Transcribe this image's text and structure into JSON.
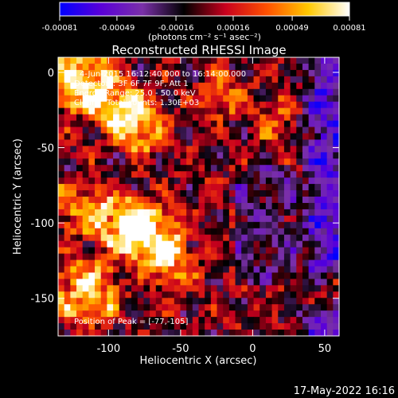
{
  "chart_data": {
    "type": "heatmap",
    "title": "Reconstructed RHESSI Image",
    "xlabel": "Heliocentric X (arcsec)",
    "ylabel": "Heliocentric Y (arcsec)",
    "xlim": [
      -135,
      60
    ],
    "ylim": [
      -175,
      10
    ],
    "x_ticks": [
      -100,
      -50,
      0,
      50
    ],
    "y_ticks": [
      0,
      -50,
      -100,
      -150
    ],
    "colorbar": {
      "range": [
        -0.00081,
        0.00081
      ],
      "ticks": [
        -0.00081,
        -0.00049,
        -0.00016,
        0.00016,
        0.00049,
        0.00081
      ],
      "tick_labels": [
        "-0.00081",
        "-0.00049",
        "-0.00016",
        "0.00016",
        "0.00049",
        "0.00081"
      ],
      "units_label": "(photons cm⁻² s⁻¹ asec⁻²)",
      "colormap": [
        "#0000ff",
        "#5a00d8",
        "#7a30a8",
        "#000000",
        "#c8001e",
        "#ff5000",
        "#ffc800",
        "#ffffff"
      ]
    },
    "annotations": [
      "4-Jun-2015 16:12:40.000 to 16:14:00.000",
      "Detectors: 3F 6F 7F 9F, Att 1",
      "Energy Range: 25.0 - 50.0 keV",
      "Clean    Total counts: 1.30E+03"
    ],
    "peak_label": "Position of Peak = [-77,-105]",
    "peak_position": [
      -77,
      -105
    ],
    "grid": false,
    "bright_sources": [
      {
        "x": -120,
        "y": -5,
        "amp": 1.0,
        "sigma": 12
      },
      {
        "x": -80,
        "y": -35,
        "amp": 0.85,
        "sigma": 10
      },
      {
        "x": -95,
        "y": -20,
        "amp": 0.7,
        "sigma": 9
      },
      {
        "x": -70,
        "y": -110,
        "amp": 0.95,
        "sigma": 11
      },
      {
        "x": -90,
        "y": -100,
        "amp": 0.95,
        "sigma": 10
      },
      {
        "x": -115,
        "y": -145,
        "amp": 0.85,
        "sigma": 12
      },
      {
        "x": -120,
        "y": -90,
        "amp": 0.6,
        "sigma": 10
      },
      {
        "x": -55,
        "y": -130,
        "amp": 0.55,
        "sigma": 9
      },
      {
        "x": 52,
        "y": -145,
        "amp": 0.7,
        "sigma": 7
      },
      {
        "x": -20,
        "y": -15,
        "amp": 0.45,
        "sigma": 8
      },
      {
        "x": 15,
        "y": -30,
        "amp": 0.4,
        "sigma": 8
      }
    ],
    "negative_region": {
      "x_from": 30,
      "level": -0.6
    }
  },
  "footer": {
    "date": "17-May-2022 16:16"
  }
}
